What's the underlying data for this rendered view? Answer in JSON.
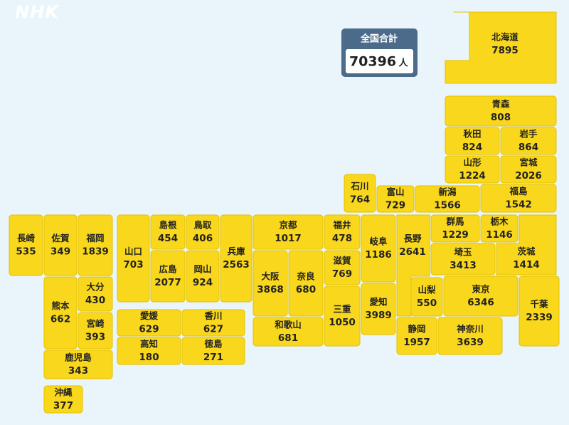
{
  "logo": "NHK",
  "total": {
    "label": "全国合計",
    "value": 70396,
    "unit": "人"
  },
  "prefectures": [
    {
      "name": "北海道",
      "value": 7895
    },
    {
      "name": "青森",
      "value": 808
    },
    {
      "name": "秋田",
      "value": 824
    },
    {
      "name": "岩手",
      "value": 864
    },
    {
      "name": "山形",
      "value": 1224
    },
    {
      "name": "宮城",
      "value": 2026
    },
    {
      "name": "石川",
      "value": 764
    },
    {
      "name": "富山",
      "value": 729
    },
    {
      "name": "新潟",
      "value": 1566
    },
    {
      "name": "福島",
      "value": 1542
    },
    {
      "name": "群馬",
      "value": 1229
    },
    {
      "name": "栃木",
      "value": 1146
    },
    {
      "name": "埼玉",
      "value": 3413
    },
    {
      "name": "茨城",
      "value": 1414
    },
    {
      "name": "長野",
      "value": 2641
    },
    {
      "name": "山梨",
      "value": 550
    },
    {
      "name": "東京",
      "value": 6346
    },
    {
      "name": "千葉",
      "value": 2339
    },
    {
      "name": "静岡",
      "value": 1957
    },
    {
      "name": "神奈川",
      "value": 3639
    },
    {
      "name": "岐阜",
      "value": 1186
    },
    {
      "name": "愛知",
      "value": 3989
    },
    {
      "name": "福井",
      "value": 478
    },
    {
      "name": "滋賀",
      "value": 769
    },
    {
      "name": "三重",
      "value": 1050
    },
    {
      "name": "京都",
      "value": 1017
    },
    {
      "name": "大阪",
      "value": 3868
    },
    {
      "name": "奈良",
      "value": 680
    },
    {
      "name": "和歌山",
      "value": 681
    },
    {
      "name": "兵庫",
      "value": 2563
    },
    {
      "name": "鳥取",
      "value": 406
    },
    {
      "name": "島根",
      "value": 454
    },
    {
      "name": "岡山",
      "value": 924
    },
    {
      "name": "広島",
      "value": 2077
    },
    {
      "name": "山口",
      "value": 703
    },
    {
      "name": "香川",
      "value": 627
    },
    {
      "name": "愛媛",
      "value": 629
    },
    {
      "name": "徳島",
      "value": 271
    },
    {
      "name": "高知",
      "value": 180
    },
    {
      "name": "福岡",
      "value": 1839
    },
    {
      "name": "佐賀",
      "value": 349
    },
    {
      "name": "長崎",
      "value": 535
    },
    {
      "name": "大分",
      "value": 430
    },
    {
      "name": "熊本",
      "value": 662
    },
    {
      "name": "宮崎",
      "value": 393
    },
    {
      "name": "鹿児島",
      "value": 343
    },
    {
      "name": "沖縄",
      "value": 377
    }
  ]
}
